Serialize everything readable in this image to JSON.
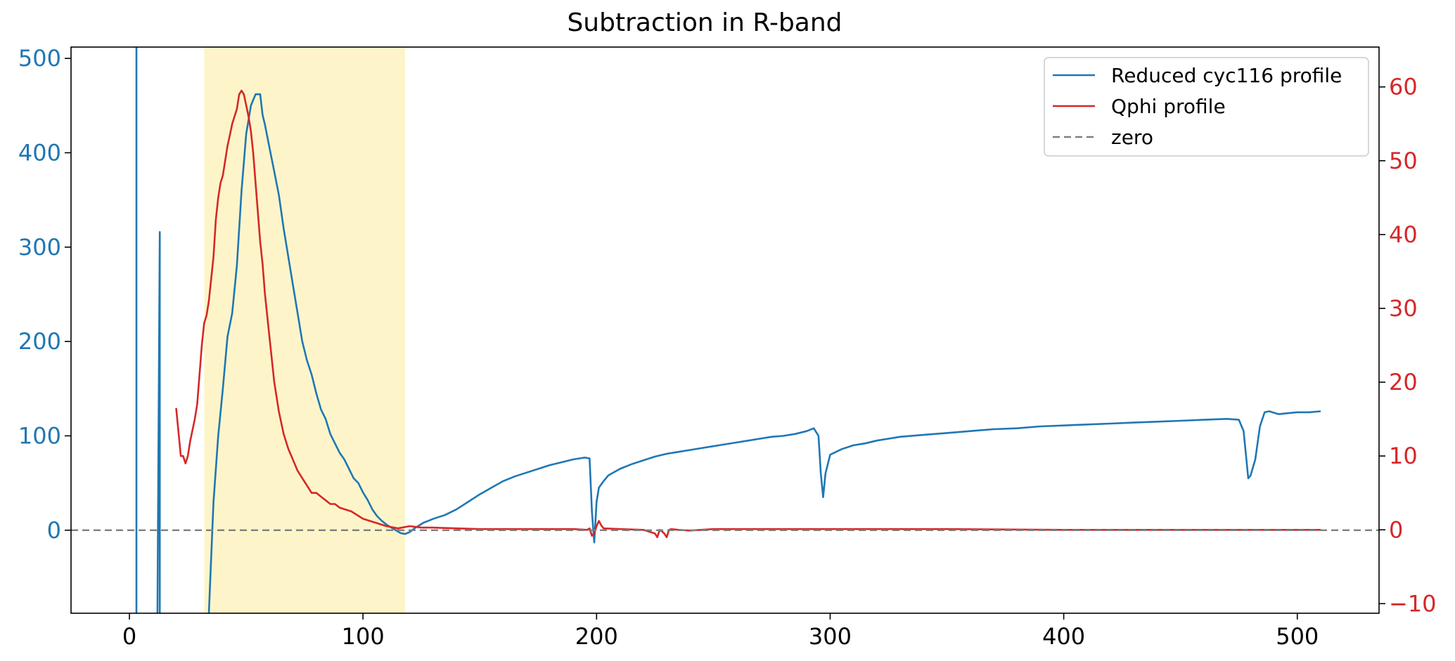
{
  "chart_data": {
    "type": "line",
    "title": "Subtraction in R-band",
    "xlabel": "",
    "ylabel_left": "",
    "ylabel_right": "",
    "xlim": [
      -25,
      535
    ],
    "ylim_left": [
      -88,
      512
    ],
    "ylim_right": [
      -11.3,
      65.4
    ],
    "x_ticks": [
      0,
      100,
      200,
      300,
      400,
      500
    ],
    "y_left_ticks": [
      0,
      100,
      200,
      300,
      400,
      500
    ],
    "y_right_ticks": [
      -10,
      0,
      10,
      20,
      30,
      40,
      50,
      60
    ],
    "y_right_tick_labels": [
      "−10",
      "0",
      "10",
      "20",
      "30",
      "40",
      "50",
      "60"
    ],
    "grid": false,
    "legend_position": "top-right",
    "highlight_band": {
      "x_start": 32,
      "x_end": 118,
      "color": "#fdf5c9"
    },
    "colors": {
      "left_axis": "#1f77b4",
      "right_axis": "#d62728",
      "zero": "#7f7f7f"
    },
    "series": [
      {
        "name": "Reduced cyc116 profile",
        "axis": "left",
        "color": "#1f77b4",
        "segments": [
          [
            [
              3,
              512
            ],
            [
              3,
              -88
            ]
          ],
          [
            [
              12,
              -88
            ],
            [
              13,
              316
            ],
            [
              13,
              -88
            ]
          ],
          [
            [
              34,
              -88
            ],
            [
              36,
              30
            ],
            [
              38,
              100
            ],
            [
              40,
              150
            ],
            [
              42,
              205
            ],
            [
              44,
              230
            ],
            [
              46,
              280
            ],
            [
              48,
              360
            ],
            [
              50,
              420
            ],
            [
              52,
              450
            ],
            [
              54,
              462
            ],
            [
              56,
              462
            ],
            [
              57,
              440
            ],
            [
              58,
              430
            ],
            [
              60,
              405
            ],
            [
              62,
              380
            ],
            [
              64,
              355
            ],
            [
              66,
              320
            ],
            [
              68,
              290
            ],
            [
              70,
              260
            ],
            [
              72,
              230
            ],
            [
              74,
              200
            ],
            [
              76,
              180
            ],
            [
              78,
              165
            ],
            [
              80,
              145
            ],
            [
              82,
              128
            ],
            [
              84,
              118
            ],
            [
              86,
              102
            ],
            [
              88,
              92
            ],
            [
              90,
              82
            ],
            [
              92,
              75
            ],
            [
              94,
              65
            ],
            [
              96,
              55
            ],
            [
              98,
              50
            ],
            [
              100,
              40
            ],
            [
              102,
              32
            ],
            [
              104,
              22
            ],
            [
              106,
              15
            ],
            [
              108,
              10
            ],
            [
              110,
              6
            ],
            [
              112,
              3
            ],
            [
              114,
              0
            ],
            [
              116,
              -3
            ],
            [
              118,
              -4
            ],
            [
              120,
              -2
            ],
            [
              122,
              2
            ],
            [
              124,
              5
            ],
            [
              126,
              8
            ],
            [
              128,
              10
            ],
            [
              130,
              12
            ],
            [
              135,
              16
            ],
            [
              140,
              22
            ],
            [
              145,
              30
            ],
            [
              150,
              38
            ],
            [
              155,
              45
            ],
            [
              160,
              52
            ],
            [
              165,
              57
            ],
            [
              170,
              61
            ],
            [
              175,
              65
            ],
            [
              180,
              69
            ],
            [
              185,
              72
            ],
            [
              190,
              75
            ],
            [
              195,
              77
            ],
            [
              197,
              76
            ],
            [
              198,
              20
            ],
            [
              199,
              -13
            ],
            [
              200,
              30
            ],
            [
              201,
              45
            ],
            [
              203,
              52
            ],
            [
              205,
              58
            ],
            [
              210,
              65
            ],
            [
              215,
              70
            ],
            [
              220,
              74
            ],
            [
              225,
              78
            ],
            [
              230,
              81
            ],
            [
              235,
              83
            ],
            [
              240,
              85
            ],
            [
              245,
              87
            ],
            [
              250,
              89
            ],
            [
              255,
              91
            ],
            [
              260,
              93
            ],
            [
              265,
              95
            ],
            [
              270,
              97
            ],
            [
              275,
              99
            ],
            [
              280,
              100
            ],
            [
              285,
              102
            ],
            [
              290,
              105
            ],
            [
              293,
              108
            ],
            [
              295,
              100
            ],
            [
              296,
              60
            ],
            [
              297,
              35
            ],
            [
              298,
              60
            ],
            [
              300,
              80
            ],
            [
              305,
              86
            ],
            [
              310,
              90
            ],
            [
              315,
              92
            ],
            [
              320,
              95
            ],
            [
              325,
              97
            ],
            [
              330,
              99
            ],
            [
              340,
              101
            ],
            [
              350,
              103
            ],
            [
              360,
              105
            ],
            [
              370,
              107
            ],
            [
              380,
              108
            ],
            [
              390,
              110
            ],
            [
              400,
              111
            ],
            [
              410,
              112
            ],
            [
              420,
              113
            ],
            [
              430,
              114
            ],
            [
              440,
              115
            ],
            [
              450,
              116
            ],
            [
              460,
              117
            ],
            [
              470,
              118
            ],
            [
              475,
              117
            ],
            [
              477,
              105
            ],
            [
              478,
              80
            ],
            [
              479,
              55
            ],
            [
              480,
              58
            ],
            [
              482,
              75
            ],
            [
              484,
              110
            ],
            [
              486,
              125
            ],
            [
              488,
              126
            ],
            [
              492,
              123
            ],
            [
              496,
              124
            ],
            [
              500,
              125
            ],
            [
              505,
              125
            ],
            [
              510,
              126
            ]
          ]
        ]
      },
      {
        "name": "Qphi profile",
        "axis": "right",
        "color": "#d62728",
        "segments": [
          [
            [
              20,
              16.5
            ],
            [
              22,
              10
            ],
            [
              23,
              10
            ],
            [
              24,
              9
            ],
            [
              25,
              10
            ],
            [
              26,
              12
            ],
            [
              28,
              15
            ],
            [
              29,
              17
            ],
            [
              30,
              21
            ],
            [
              31,
              25
            ],
            [
              32,
              28
            ],
            [
              33,
              29
            ],
            [
              34,
              31
            ],
            [
              35,
              34
            ],
            [
              36,
              37
            ],
            [
              37,
              42
            ],
            [
              38,
              45
            ],
            [
              39,
              47
            ],
            [
              40,
              48
            ],
            [
              41,
              50
            ],
            [
              42,
              52
            ],
            [
              43,
              53.5
            ],
            [
              44,
              55
            ],
            [
              45,
              56
            ],
            [
              46,
              57
            ],
            [
              47,
              59
            ],
            [
              48,
              59.5
            ],
            [
              49,
              59
            ],
            [
              50,
              57.5
            ],
            [
              51,
              56
            ],
            [
              52,
              54
            ],
            [
              53,
              51
            ],
            [
              54,
              47
            ],
            [
              55,
              43
            ],
            [
              56,
              39
            ],
            [
              57,
              36
            ],
            [
              58,
              32
            ],
            [
              60,
              26
            ],
            [
              62,
              20
            ],
            [
              64,
              16
            ],
            [
              66,
              13
            ],
            [
              68,
              11
            ],
            [
              70,
              9.5
            ],
            [
              72,
              8
            ],
            [
              74,
              7
            ],
            [
              76,
              6
            ],
            [
              78,
              5
            ],
            [
              80,
              5
            ],
            [
              82,
              4.5
            ],
            [
              84,
              4
            ],
            [
              86,
              3.5
            ],
            [
              88,
              3.5
            ],
            [
              90,
              3
            ],
            [
              95,
              2.5
            ],
            [
              100,
              1.5
            ],
            [
              105,
              1
            ],
            [
              110,
              0.5
            ],
            [
              115,
              0.2
            ],
            [
              120,
              0.5
            ],
            [
              125,
              0.3
            ],
            [
              130,
              0.3
            ],
            [
              140,
              0.2
            ],
            [
              150,
              0.1
            ],
            [
              170,
              0.1
            ],
            [
              190,
              0.1
            ],
            [
              196,
              0
            ],
            [
              197,
              0.2
            ],
            [
              198,
              -0.8
            ],
            [
              199,
              -0.5
            ],
            [
              200,
              0.5
            ],
            [
              201,
              1.2
            ],
            [
              202,
              0.6
            ],
            [
              203,
              0.2
            ],
            [
              210,
              0.1
            ],
            [
              220,
              0
            ],
            [
              225,
              -0.5
            ],
            [
              226,
              -1
            ],
            [
              227,
              0
            ],
            [
              228,
              -0.2
            ],
            [
              229,
              -0.5
            ],
            [
              230,
              -1
            ],
            [
              231,
              0
            ],
            [
              232,
              0.1
            ],
            [
              235,
              0
            ],
            [
              240,
              -0.1
            ],
            [
              250,
              0.1
            ],
            [
              300,
              0.1
            ],
            [
              350,
              0.1
            ],
            [
              400,
              0
            ],
            [
              450,
              0
            ],
            [
              500,
              0
            ],
            [
              510,
              0
            ]
          ]
        ]
      },
      {
        "name": "zero",
        "axis": "left",
        "color": "#7f7f7f",
        "dashed": true,
        "segments": [
          [
            [
              -25,
              0
            ],
            [
              535,
              0
            ]
          ]
        ]
      }
    ]
  }
}
